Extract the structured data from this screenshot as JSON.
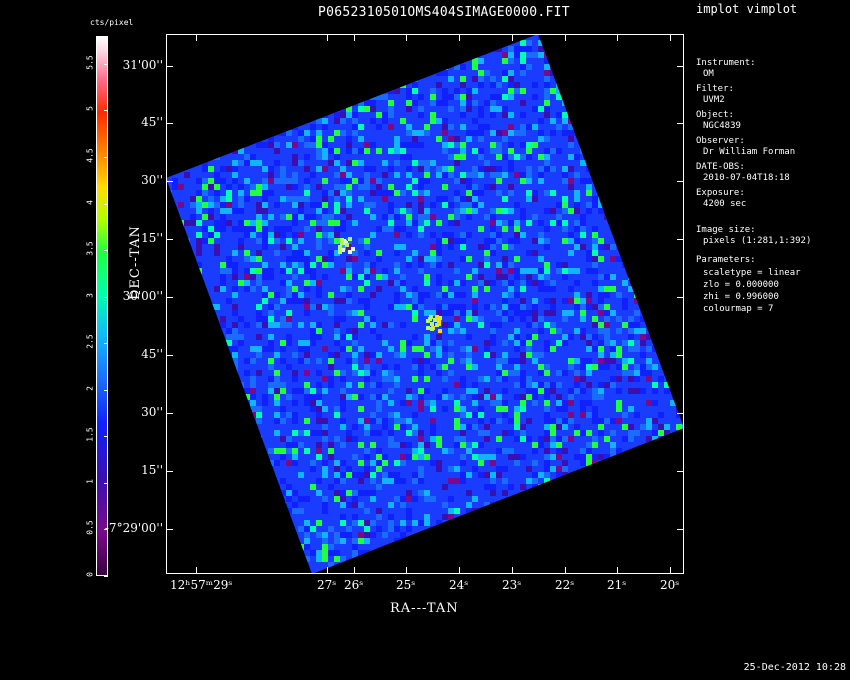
{
  "window": {
    "title": "P0652310501OMS404SIMAGE0000.FIT",
    "program": "implot vimplot",
    "timestamp": "25-Dec-2012 10:28"
  },
  "colorbar": {
    "unit": "cts/pixel",
    "ticks": [
      "0",
      "0.5",
      "1",
      "1.5",
      "2",
      "2.5",
      "3",
      "3.5",
      "4",
      "4.5",
      "5",
      "5.5"
    ]
  },
  "axes": {
    "x_title": "RA---TAN",
    "y_title": "DEC--TAN",
    "x_ticks": [
      "12ʰ57ᵐ29ˢ",
      "27ˢ",
      "26ˢ",
      "25ˢ",
      "24ˢ",
      "23ˢ",
      "22ˢ",
      "21ˢ",
      "20ˢ"
    ],
    "y_ticks": [
      "31'00''",
      "45''",
      "30''",
      "15''",
      "30'00''",
      "45''",
      "30''",
      "15''",
      "-7°29'00''"
    ]
  },
  "info": [
    {
      "label": "Instrument:",
      "value": "OM"
    },
    {
      "label": "Filter:",
      "value": "UVM2"
    },
    {
      "label": "Object:",
      "value": "NGC4839"
    },
    {
      "label": "Observer:",
      "value": "Dr William Forman"
    },
    {
      "label": "DATE-OBS:",
      "value": "2010-07-04T18:18"
    },
    {
      "label": "Exposure:",
      "value": "4200 sec"
    },
    {
      "label": "Image size:",
      "value": "pixels (1:281,1:392)"
    }
  ],
  "parameters": {
    "label": "Parameters:",
    "items": [
      "scaletype = linear",
      "zlo = 0.000000",
      "zhi = 0.996000",
      "colourmap = 7"
    ]
  },
  "colors": {
    "background": "#000000",
    "field": "#1a3cff"
  }
}
